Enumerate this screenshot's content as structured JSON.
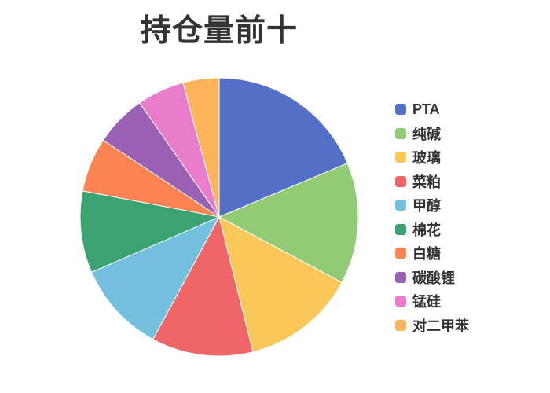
{
  "page": {
    "background_color": "#ffffff"
  },
  "chart_data": {
    "type": "pie",
    "title": "持仓量前十",
    "title_color": "#333333",
    "categories": [
      "PTA",
      "纯碱",
      "玻璃",
      "菜粕",
      "甲醇",
      "棉花",
      "白糖",
      "碳酸锂",
      "锰硅",
      "对二甲苯"
    ],
    "values": [
      18.7,
      14.1,
      13.3,
      11.8,
      10.6,
      9.5,
      6.3,
      6.0,
      5.5,
      4.2
    ],
    "value_unit": "percent-of-total",
    "colors": [
      "#5470c6",
      "#91cc75",
      "#fac858",
      "#ee6666",
      "#73c0de",
      "#3ba272",
      "#fc8452",
      "#9a60b4",
      "#ea7ccc",
      "#fbb45a"
    ],
    "slice_border_color": "#ffffff",
    "legend_position": "right",
    "legend_orientation": "vertical",
    "start_angle_deg": 0,
    "clockwise": true,
    "labels_shown": false
  }
}
